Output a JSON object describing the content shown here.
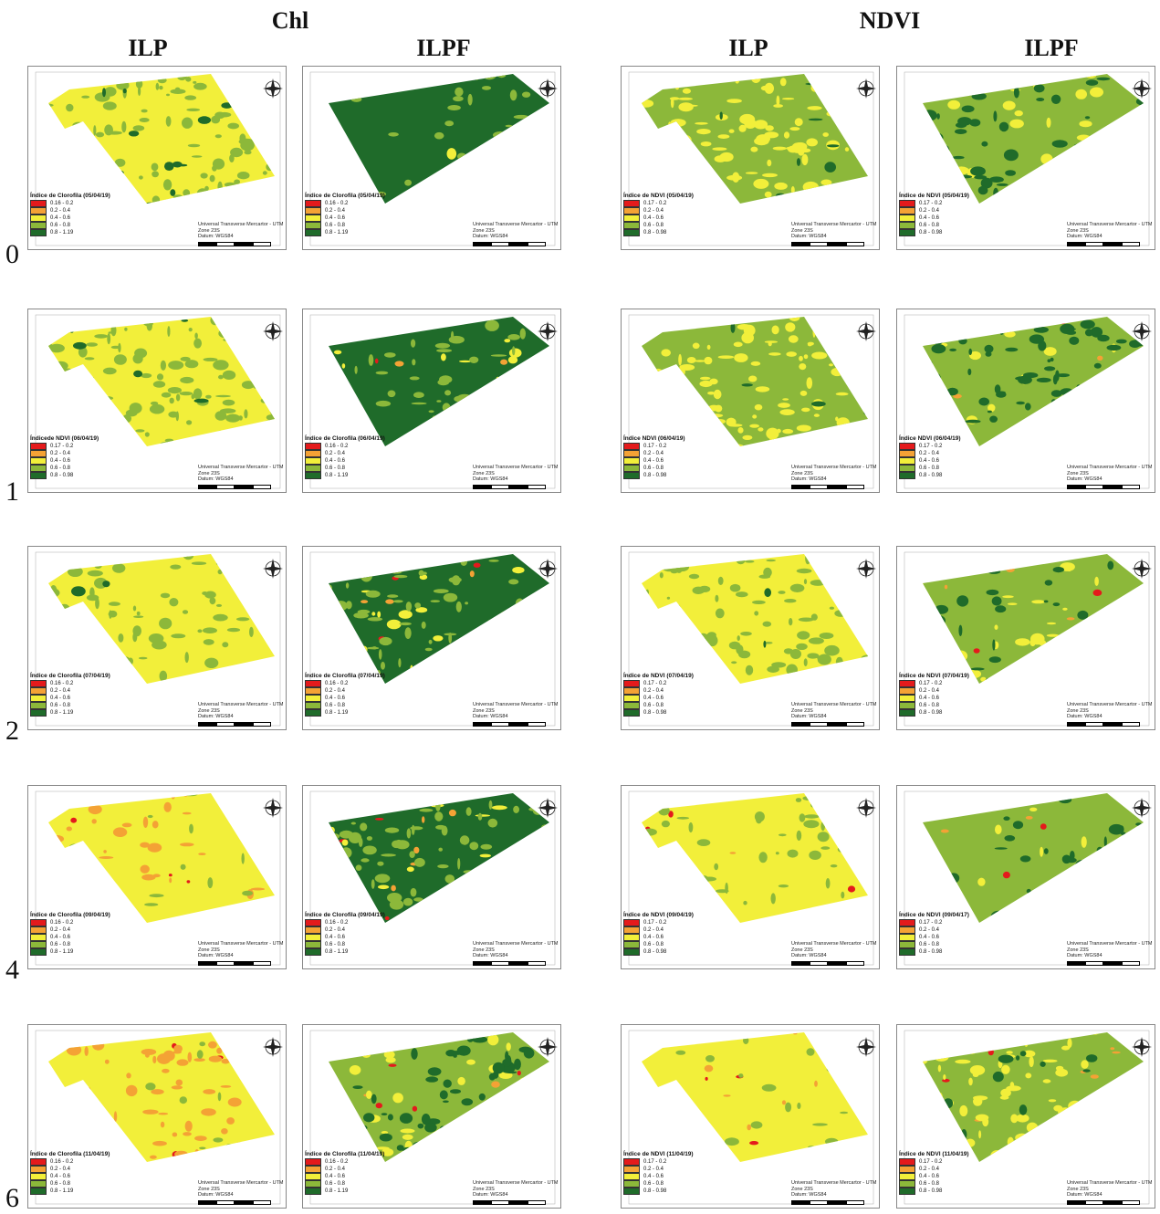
{
  "headers": {
    "chl": "Chl",
    "ndvi": "NDVI",
    "ilp": "ILP",
    "ilpf": "ILPF"
  },
  "rows": [
    "0",
    "1",
    "2",
    "4",
    "6"
  ],
  "projection": {
    "line1": "Universal Transverse Mercartor - UTM",
    "line2": "Zone 23S",
    "line3": "Datum: WGS84"
  },
  "legend_chl": [
    "0.16 - 0.2",
    "0.2 - 0.4",
    "0.4 - 0.6",
    "0.6 - 0.8",
    "0.8 - 1.19"
  ],
  "legend_ndvi": [
    "0.17 - 0.2",
    "0.2 - 0.4",
    "0.4 - 0.6",
    "0.6 - 0.8",
    "0.8 - 0.98"
  ],
  "class_colors": [
    "#e41a1c",
    "#f4a235",
    "#f2ef3a",
    "#8cb83a",
    "#1f6b2a"
  ],
  "panels": [
    {
      "title": "Índice de Clorofila (05/04/19)",
      "legend": "chl",
      "mix": [
        0,
        0,
        0.48,
        0.44,
        0.08
      ]
    },
    {
      "title": "Índice de Clorofila (05/04/19)",
      "legend": "chl",
      "mix": [
        0,
        0,
        0.01,
        0.12,
        0.87
      ]
    },
    {
      "title": "Índice de NDVI (05/04/19)",
      "legend": "ndvi",
      "mix": [
        0,
        0,
        0.42,
        0.55,
        0.03
      ]
    },
    {
      "title": "Índice de NDVI (05/04/19)",
      "legend": "ndvi",
      "mix": [
        0,
        0,
        0.08,
        0.68,
        0.24
      ]
    },
    {
      "title": "Índicede NDVI (06/04/19)",
      "legend": "ndvi",
      "mix": [
        0,
        0,
        0.5,
        0.48,
        0.02
      ]
    },
    {
      "title": "Índice de Clorofila (06/04/19)",
      "legend": "chl",
      "mix": [
        0.01,
        0.01,
        0.06,
        0.24,
        0.68
      ]
    },
    {
      "title": "Índice NDVI (06/04/19)",
      "legend": "ndvi",
      "mix": [
        0,
        0,
        0.45,
        0.53,
        0.02
      ]
    },
    {
      "title": "Índice NDVI (06/04/19)",
      "legend": "ndvi",
      "mix": [
        0.01,
        0.01,
        0.08,
        0.52,
        0.38
      ]
    },
    {
      "title": "Índice de Clorofila (07/04/19)",
      "legend": "chl",
      "mix": [
        0,
        0,
        0.68,
        0.31,
        0.01
      ]
    },
    {
      "title": "Índice de Clorofila (07/04/19)",
      "legend": "chl",
      "mix": [
        0.01,
        0.02,
        0.06,
        0.36,
        0.55
      ]
    },
    {
      "title": "Índice de NDVI (07/04/19)",
      "legend": "ndvi",
      "mix": [
        0,
        0,
        0.6,
        0.39,
        0.01
      ]
    },
    {
      "title": "Índice de NDVI (07/04/19)",
      "legend": "ndvi",
      "mix": [
        0.01,
        0.01,
        0.12,
        0.74,
        0.12
      ]
    },
    {
      "title": "Índice de Clorofila (09/04/19)",
      "legend": "chl",
      "mix": [
        0.01,
        0.16,
        0.78,
        0.05,
        0
      ]
    },
    {
      "title": "Índice de Clorofila (09/04/19)",
      "legend": "chl",
      "mix": [
        0.01,
        0.02,
        0.06,
        0.42,
        0.49
      ]
    },
    {
      "title": "Índice de NDVI (09/04/19)",
      "legend": "ndvi",
      "mix": [
        0.01,
        0.01,
        0.8,
        0.18,
        0
      ]
    },
    {
      "title": "Índice de NDVI (09/04/17)",
      "legend": "ndvi",
      "mix": [
        0.01,
        0.01,
        0.03,
        0.8,
        0.15
      ]
    },
    {
      "title": "Índice de Clorofila (11/04/19)",
      "legend": "chl",
      "mix": [
        0.01,
        0.3,
        0.62,
        0.07,
        0
      ]
    },
    {
      "title": "Índice de Clorofila (11/04/19)",
      "legend": "chl",
      "mix": [
        0.01,
        0.02,
        0.2,
        0.5,
        0.27
      ]
    },
    {
      "title": "Índice de NDVI (11/04/19)",
      "legend": "ndvi",
      "mix": [
        0.01,
        0.02,
        0.9,
        0.07,
        0
      ]
    },
    {
      "title": "Índice de NDVI (11/04/19)",
      "legend": "ndvi",
      "mix": [
        0.01,
        0.02,
        0.3,
        0.62,
        0.05
      ]
    }
  ]
}
